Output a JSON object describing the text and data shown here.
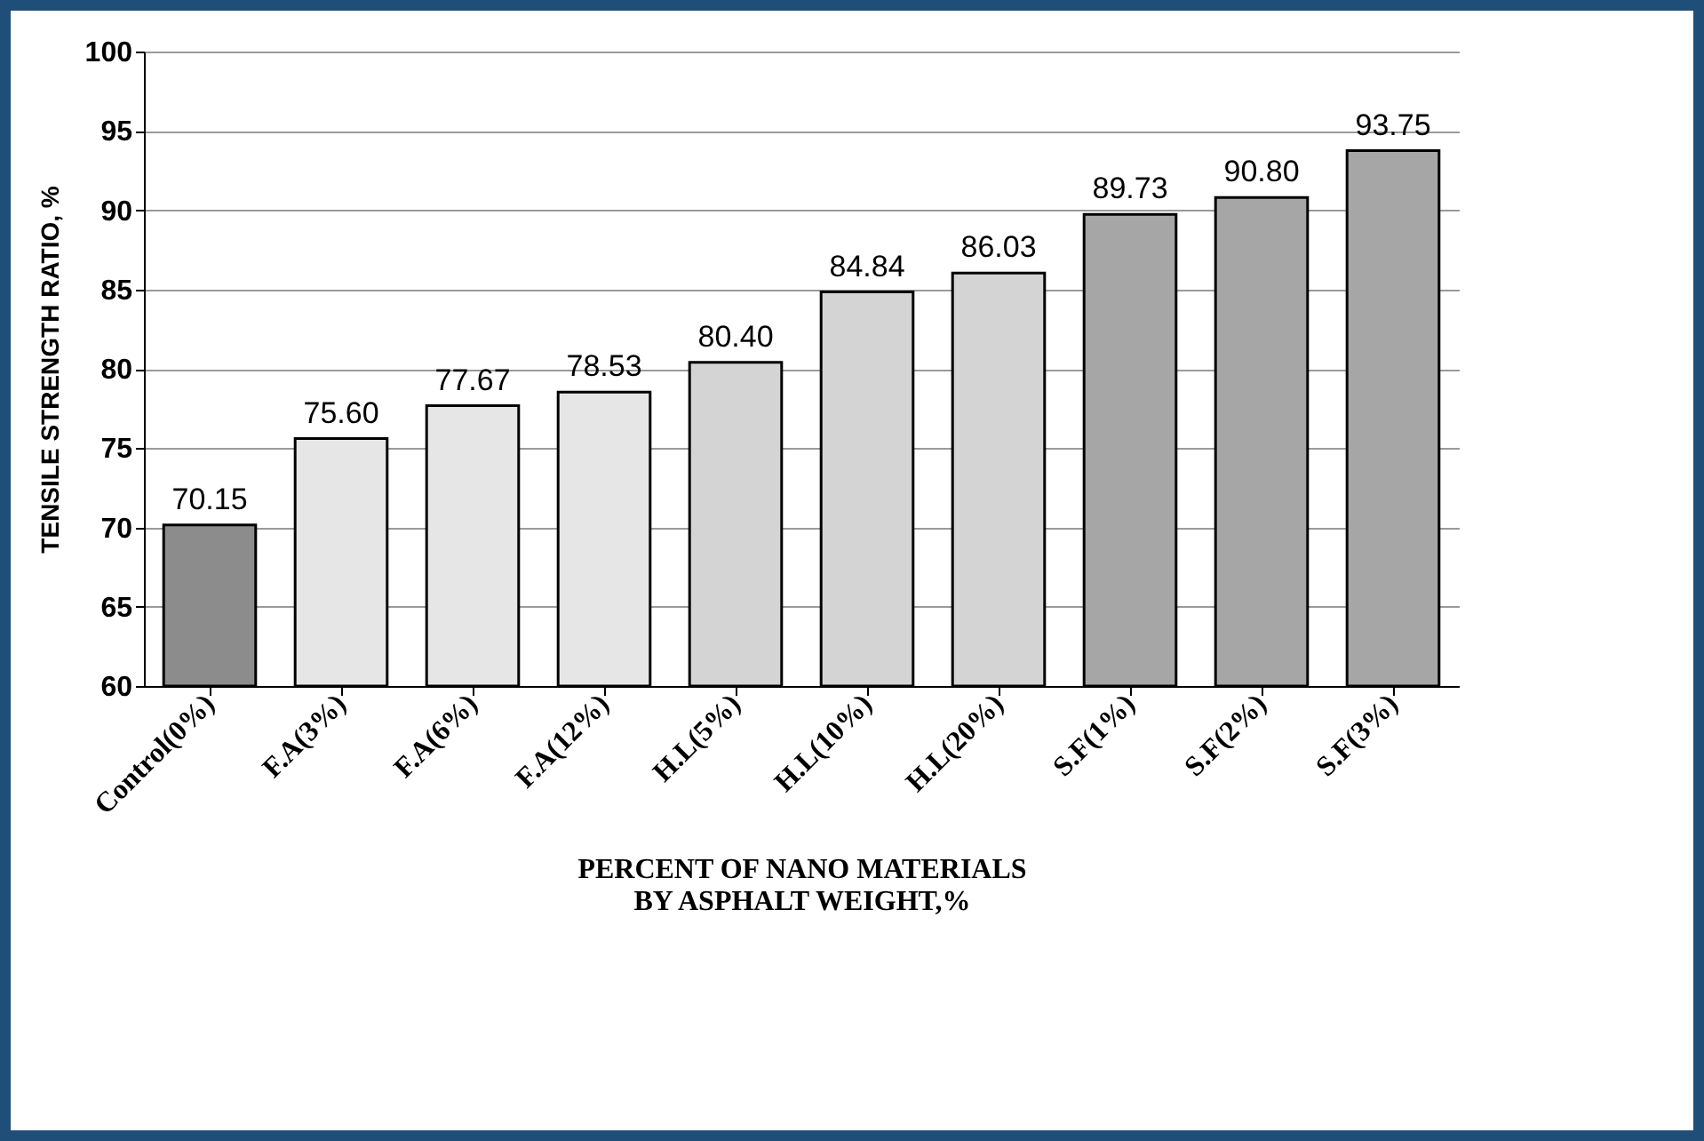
{
  "chart_data": {
    "type": "bar",
    "categories": [
      "Control(0%)",
      "F.A(3%)",
      "F.A(6%)",
      "F.A(12%)",
      "H.L(5%)",
      "H.L(10%)",
      "H.L(20%)",
      "S.F(1%)",
      "S.F(2%)",
      "S.F(3%)"
    ],
    "values": [
      70.15,
      75.6,
      77.67,
      78.53,
      80.4,
      84.84,
      86.03,
      89.73,
      90.8,
      93.75
    ],
    "value_labels": [
      "70.15",
      "75.60",
      "77.67",
      "78.53",
      "80.40",
      "84.84",
      "86.03",
      "89.73",
      "90.80",
      "93.75"
    ],
    "colors": [
      "#8c8c8c",
      "#e6e6e6",
      "#e6e6e6",
      "#e6e6e6",
      "#d4d4d4",
      "#d4d4d4",
      "#d4d4d4",
      "#a6a6a6",
      "#a6a6a6",
      "#a6a6a6"
    ],
    "xlabel": "PERCENT OF NANO MATERIALS BY ASPHALT WEIGHT,%",
    "ylabel": "TENSILE STRENGTH RATIO, %",
    "ylim": [
      60,
      100
    ],
    "yticks": [
      60,
      65,
      70,
      75,
      80,
      85,
      90,
      95,
      100
    ],
    "grid": "y"
  }
}
